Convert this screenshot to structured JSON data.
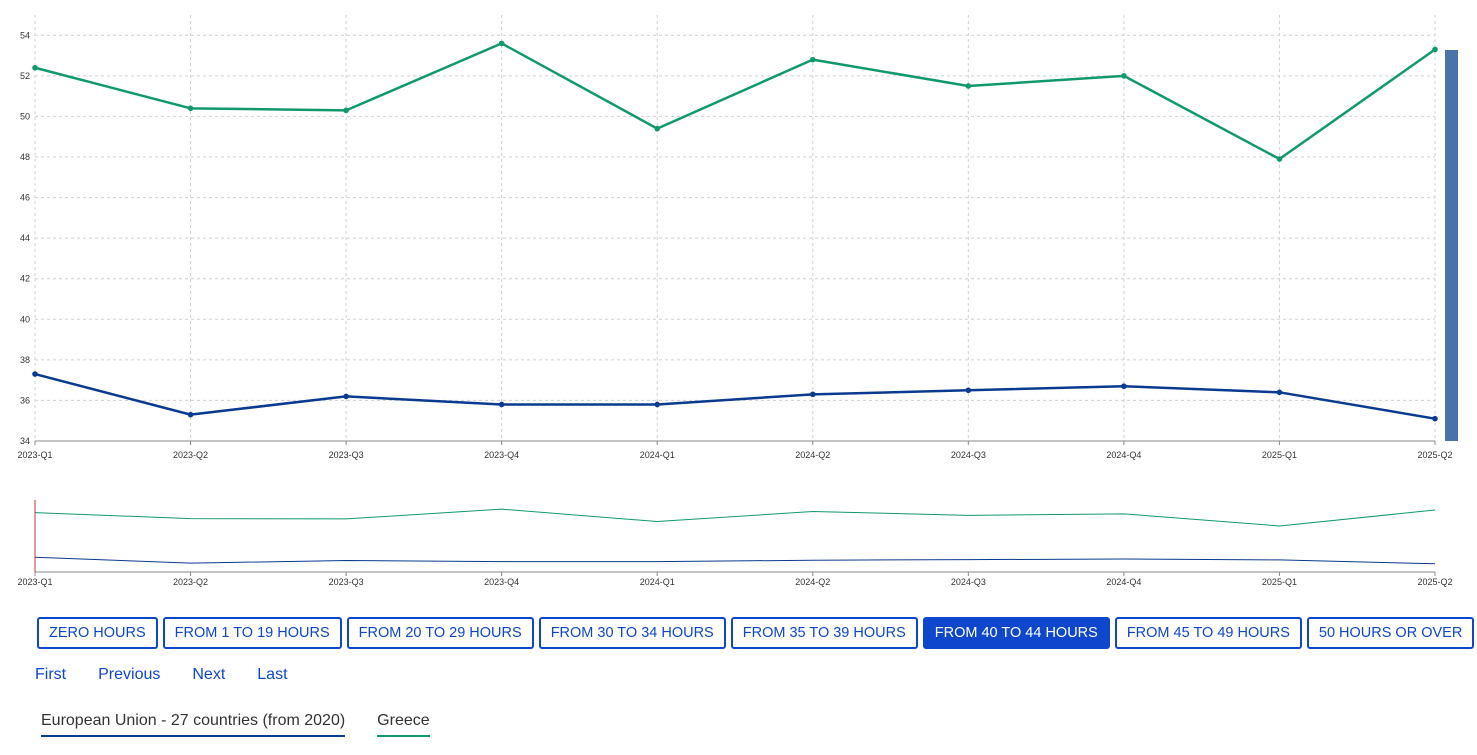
{
  "chart_data": {
    "type": "line",
    "categories": [
      "2023-Q1",
      "2023-Q2",
      "2023-Q3",
      "2023-Q4",
      "2024-Q1",
      "2024-Q2",
      "2024-Q3",
      "2024-Q4",
      "2025-Q1",
      "2025-Q2"
    ],
    "series": [
      {
        "name": "European Union - 27 countries (from 2020)",
        "color": "#0b3a91",
        "values": [
          37.3,
          35.3,
          36.2,
          35.8,
          35.8,
          36.3,
          36.5,
          36.7,
          36.4,
          35.1
        ]
      },
      {
        "name": "Greece",
        "color": "#12996b",
        "values": [
          52.4,
          50.4,
          50.3,
          53.6,
          49.4,
          52.8,
          51.5,
          52.0,
          47.9,
          53.3
        ]
      }
    ],
    "ylim": [
      34,
      55
    ],
    "yticks": [
      34,
      36,
      38,
      40,
      42,
      44,
      46,
      48,
      50,
      52,
      54
    ],
    "grid": true,
    "legend_position": "bottom-left"
  },
  "buttons": [
    {
      "label": "ZERO HOURS",
      "active": false
    },
    {
      "label": "FROM 1 TO 19 HOURS",
      "active": false
    },
    {
      "label": "FROM 20 TO 29 HOURS",
      "active": false
    },
    {
      "label": "FROM 30 TO 34 HOURS",
      "active": false
    },
    {
      "label": "FROM 35 TO 39 HOURS",
      "active": false
    },
    {
      "label": "FROM 40 TO 44 HOURS",
      "active": true
    },
    {
      "label": "FROM 45 TO 49 HOURS",
      "active": false
    },
    {
      "label": "50 HOURS OR OVER",
      "active": false
    }
  ],
  "pager": {
    "first": "First",
    "previous": "Previous",
    "next": "Next",
    "last": "Last"
  },
  "legend": [
    {
      "label": "European Union - 27 countries (from 2020)",
      "color": "#0b3a91"
    },
    {
      "label": "Greece",
      "color": "#12996b"
    }
  ]
}
